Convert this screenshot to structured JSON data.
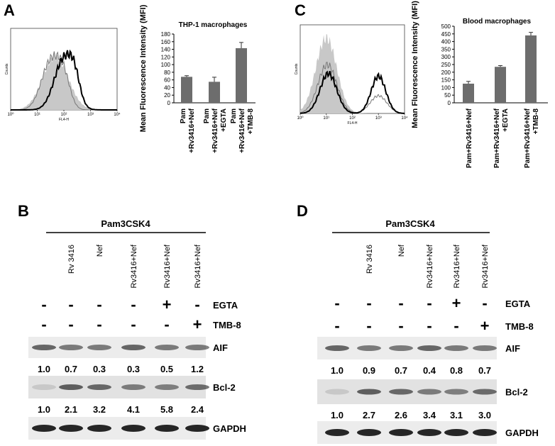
{
  "chart_data": [
    {
      "type": "bar",
      "panel_label": "A",
      "title": "THP-1 macrophages",
      "y_label": "Mean Fluorescence Intensity (MFI)",
      "categories": [
        [
          "Pam",
          "+Rv3416+Nef"
        ],
        [
          "Pam",
          "+Rv3416+Nef",
          "+EGTA"
        ],
        [
          "Pam",
          "+Rv3416+Nef",
          "+TMB-8"
        ]
      ],
      "values": [
        68,
        55,
        143
      ],
      "errors": [
        3,
        12,
        15
      ],
      "color": "#6d6d6d",
      "ylim": [
        0,
        180
      ],
      "yticks": [
        0,
        20,
        40,
        60,
        80,
        100,
        120,
        140,
        160,
        180
      ]
    },
    {
      "type": "bar",
      "panel_label": "C",
      "title": "Blood macrophages",
      "y_label": "Mean Fluorescence Intensity (MFI)",
      "categories": [
        [
          "Pam+Rv3416+Nef"
        ],
        [
          "Pam+Rv3416+Nef",
          "+EGTA"
        ],
        [
          "Pam+Rv3416+Nef",
          "+TMB-8"
        ]
      ],
      "values": [
        125,
        235,
        440
      ],
      "errors": [
        15,
        8,
        20
      ],
      "color": "#6d6d6d",
      "ylim": [
        0,
        500
      ],
      "yticks": [
        0,
        50,
        100,
        150,
        200,
        250,
        300,
        350,
        400,
        450,
        500
      ]
    }
  ],
  "flow_histograms": [
    {
      "y_label": "Counts",
      "x_label": "FL4-H",
      "xticks": [
        {
          "value": 1,
          "label": "10⁰"
        },
        {
          "value": 10,
          "label": "10¹"
        },
        {
          "value": 100,
          "label": "10²"
        },
        {
          "value": 1000,
          "label": "10³"
        },
        {
          "value": 10000,
          "label": "10⁴"
        }
      ]
    },
    {
      "y_label": "Counts",
      "x_label": "FL4-H",
      "xticks": [
        {
          "value": 1,
          "label": "10⁰"
        },
        {
          "value": 10,
          "label": "10¹"
        },
        {
          "value": 100,
          "label": "10²"
        },
        {
          "value": 1000,
          "label": "10³"
        },
        {
          "value": 10000,
          "label": "10⁴"
        }
      ]
    }
  ],
  "blots": [
    {
      "panel_label": "B",
      "group_label": "Pam3CSK4",
      "lanes": [
        null,
        "Rv 3416",
        "Nef",
        "Rv3416+Nef",
        "Rv3416+Nef",
        "Rv3416+Nef"
      ],
      "treatments": [
        {
          "name": "EGTA",
          "signs": [
            "-",
            "-",
            "-",
            "-",
            "+",
            "-"
          ]
        },
        {
          "name": "TMB-8",
          "signs": [
            "-",
            "-",
            "-",
            "-",
            "-",
            "+"
          ]
        }
      ],
      "bands": [
        {
          "name": "AIF",
          "quant": [
            "1.0",
            "0.7",
            "0.3",
            "0.3",
            "0.5",
            "1.2"
          ]
        },
        {
          "name": "Bcl-2",
          "quant": [
            "1.0",
            "2.1",
            "3.2",
            "4.1",
            "5.8",
            "2.4"
          ]
        },
        {
          "name": "GAPDH"
        }
      ]
    },
    {
      "panel_label": "D",
      "group_label": "Pam3CSK4",
      "lanes": [
        null,
        "Rv 3416",
        "Nef",
        "Rv3416+Nef",
        "Rv3416+Nef",
        "Rv3416+Nef"
      ],
      "treatments": [
        {
          "name": "EGTA",
          "signs": [
            "-",
            "-",
            "-",
            "-",
            "+",
            "-"
          ]
        },
        {
          "name": "TMB-8",
          "signs": [
            "-",
            "-",
            "-",
            "-",
            "-",
            "+"
          ]
        }
      ],
      "bands": [
        {
          "name": "AIF",
          "quant": [
            "1.0",
            "0.9",
            "0.7",
            "0.4",
            "0.8",
            "0.7"
          ]
        },
        {
          "name": "Bcl-2",
          "quant": [
            "1.0",
            "2.7",
            "2.6",
            "3.4",
            "3.1",
            "3.0"
          ]
        },
        {
          "name": "GAPDH"
        }
      ]
    }
  ]
}
